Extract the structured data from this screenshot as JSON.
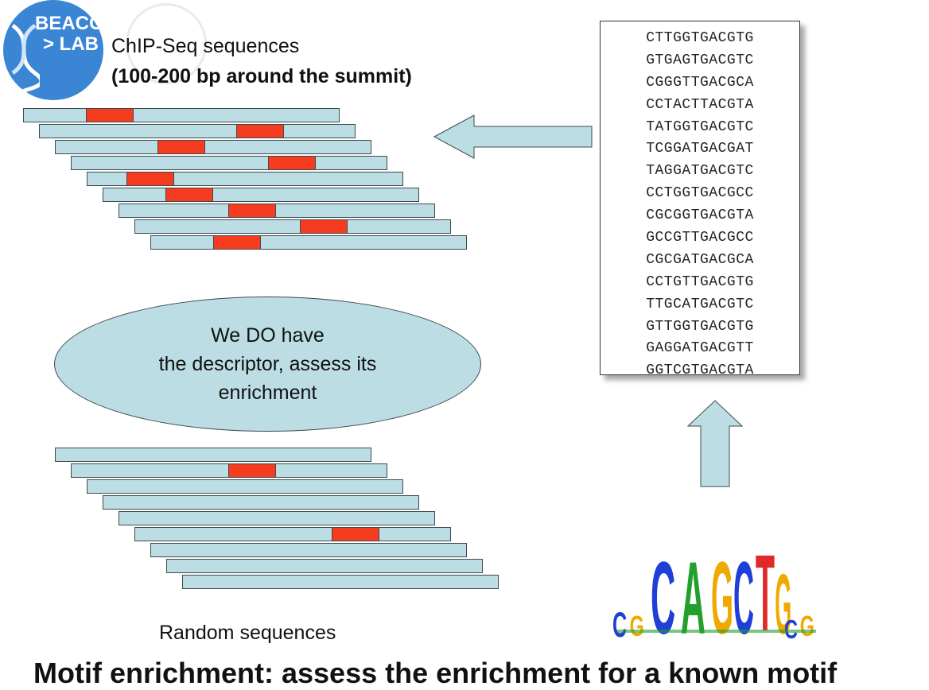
{
  "logo": {
    "line1": "BEACON",
    "line2": "> LAB"
  },
  "chipseq": {
    "title": "ChIP-Seq sequences",
    "subtitle": "(100-200 bp around the summit)"
  },
  "sequences": [
    "CTTGGTGACGTG",
    "GTGAGTGACGTC",
    "CGGGTTGACGCA",
    "CCTACTTACGTA",
    "TATGGTGACGTC",
    "TCGGATGACGAT",
    "TAGGATGACGTC",
    "CCTGGTGACGCC",
    "CGCGGTGACGTA",
    "GCCGTTGACGCC",
    "CGCGATGACGCA",
    "CCTGTTGACGTG",
    "TTGCATGACGTC",
    "GTTGGTGACGTG",
    "GAGGATGACGTT",
    "GGTCGTGACGTA"
  ],
  "ellipse": {
    "line1": "We DO have",
    "line2": "the descriptor, assess its",
    "line3": "enrichment"
  },
  "random": {
    "label": "Random sequences"
  },
  "logo_motif": {
    "letters": "CGCAGCTGCG"
  },
  "footer": {
    "title": "Motif enrichment: assess the enrichment for a known motif"
  },
  "colors": {
    "bar_fill": "#bcdde4",
    "hit_fill": "#f53c1e",
    "logo_blue": "#3a86d4"
  }
}
